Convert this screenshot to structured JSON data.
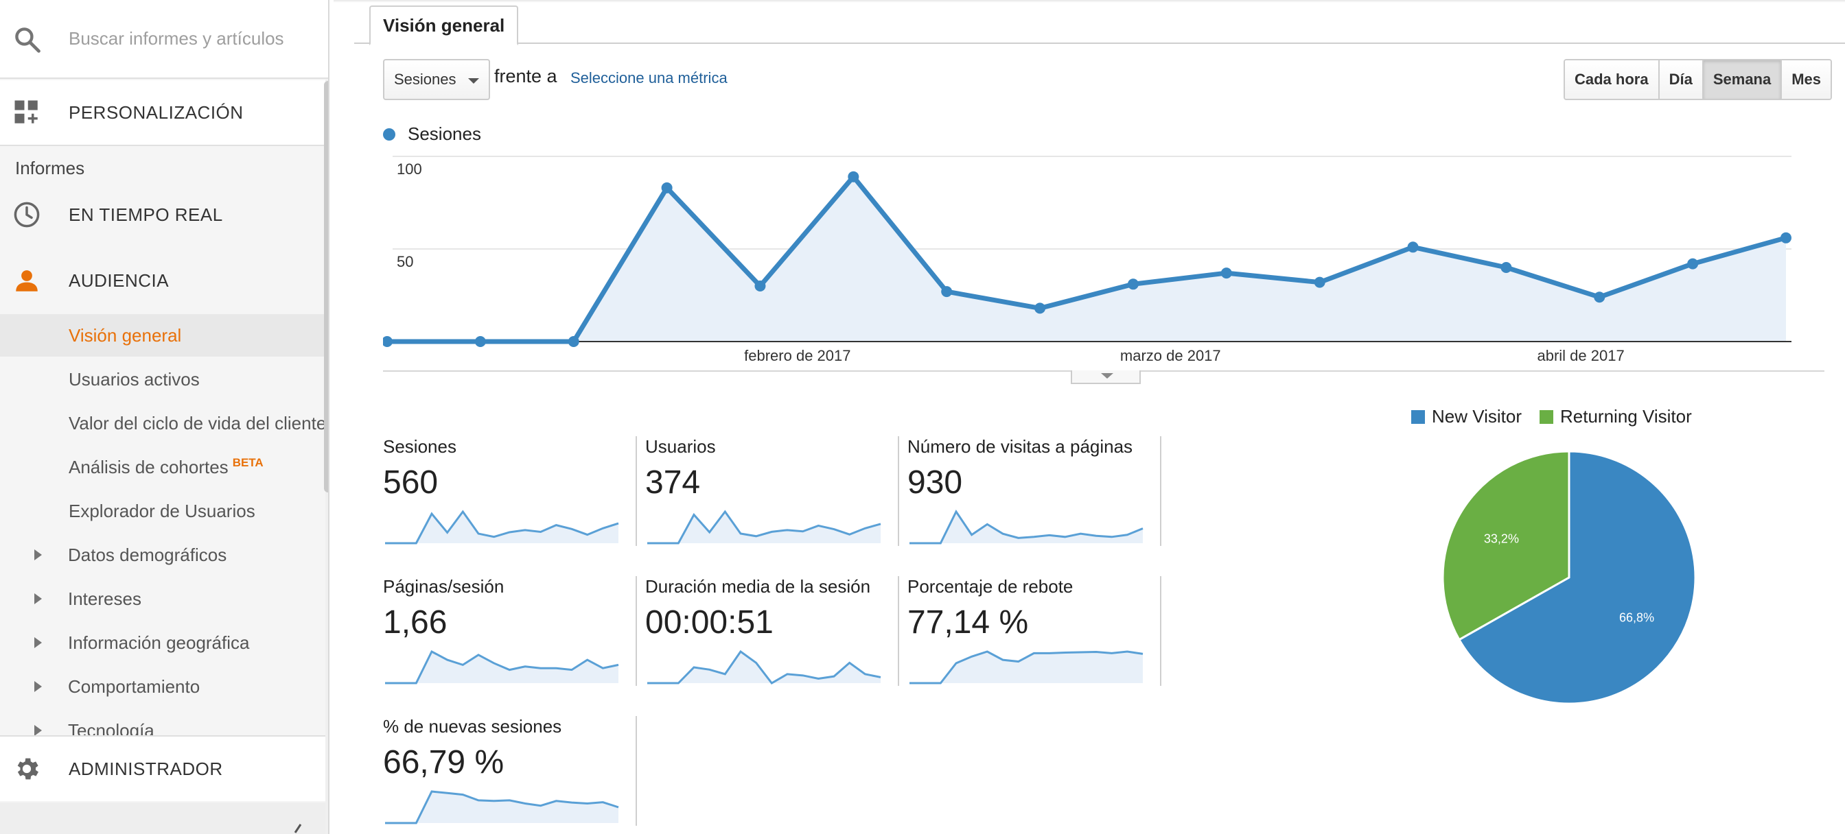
{
  "search": {
    "placeholder": "Buscar informes y artículos"
  },
  "sidebar": {
    "personalizacion": "PERSONALIZACIÓN",
    "informes_label": "Informes",
    "tiempo_real": "EN TIEMPO REAL",
    "audiencia": "AUDIENCIA",
    "audiencia_items": [
      {
        "label": "Visión general",
        "active": true
      },
      {
        "label": "Usuarios activos"
      },
      {
        "label": "Valor del ciclo de vida del cliente"
      },
      {
        "label": "Análisis de cohortes",
        "badge": "BETA"
      },
      {
        "label": "Explorador de Usuarios"
      }
    ],
    "tree_items": [
      "Datos demográficos",
      "Intereses",
      "Información geográfica",
      "Comportamiento",
      "Tecnología"
    ],
    "administrador": "ADMINISTRADOR",
    "icons": [
      "search-icon",
      "dashboard-add-icon",
      "clock-icon",
      "person-icon",
      "gear-icon",
      "chevron-left-icon"
    ]
  },
  "tabs": {
    "overview": "Visión general"
  },
  "controls": {
    "metric_select": "Sesiones",
    "versus": "frente a",
    "select_metric_link": "Seleccione una métrica",
    "granularity": [
      {
        "label": "Cada hora"
      },
      {
        "label": "Día"
      },
      {
        "label": "Semana",
        "active": true
      },
      {
        "label": "Mes"
      }
    ]
  },
  "colors": {
    "accent": "#3a87c2",
    "area_fill": "#e8f0f9",
    "active_nav": "#e8710a",
    "new_visitor": "#3a87c2",
    "returning_visitor": "#6aaf44"
  },
  "chart_data": [
    {
      "type": "line",
      "series": [
        {
          "name": "Sesiones",
          "values": [
            0,
            0,
            0,
            83,
            30,
            89,
            27,
            18,
            31,
            37,
            32,
            51,
            40,
            24,
            42,
            56
          ]
        }
      ],
      "x_tick_labels": [
        "febrero de 2017",
        "marzo de 2017",
        "abril de 2017"
      ],
      "x_tick_positions": [
        4.4,
        8.4,
        12.8
      ],
      "y_tick_labels": [
        "100",
        "50"
      ],
      "ylim": [
        0,
        100
      ],
      "grid": true,
      "area_fill": true
    },
    {
      "type": "pie",
      "labels": [
        "New Visitor",
        "Returning Visitor"
      ],
      "values": [
        66.8,
        33.2
      ],
      "value_labels": [
        "66,8%",
        "33,2%"
      ],
      "legend": "top"
    }
  ],
  "metrics": [
    {
      "label": "Sesiones",
      "value": "560",
      "spark": [
        0,
        0,
        0,
        83,
        30,
        89,
        27,
        18,
        31,
        37,
        32,
        51,
        40,
        24,
        42,
        56
      ]
    },
    {
      "label": "Usuarios",
      "value": "374",
      "spark": [
        0,
        0,
        0,
        65,
        25,
        72,
        22,
        16,
        26,
        30,
        27,
        40,
        32,
        20,
        34,
        44
      ]
    },
    {
      "label": "Número de visitas a páginas",
      "value": "930",
      "spark": [
        0,
        0,
        0,
        150,
        40,
        90,
        45,
        25,
        30,
        38,
        30,
        45,
        35,
        30,
        40,
        70
      ]
    },
    {
      "label": "Páginas/sesión",
      "value": "1,66",
      "spark": [
        0.4,
        0.4,
        0.4,
        2.3,
        1.8,
        1.5,
        2.1,
        1.6,
        1.2,
        1.4,
        1.3,
        1.3,
        1.2,
        1.8,
        1.3,
        1.5
      ]
    },
    {
      "label": "Duración media de la sesión",
      "value": "00:00:51",
      "spark": [
        5,
        5,
        5,
        40,
        35,
        25,
        75,
        50,
        5,
        25,
        22,
        15,
        20,
        50,
        25,
        18
      ]
    },
    {
      "label": "Porcentaje de rebote",
      "value": "77,14 %",
      "spark": [
        0,
        0,
        0,
        60,
        80,
        95,
        70,
        65,
        90,
        90,
        92,
        93,
        94,
        90,
        95,
        88
      ]
    },
    {
      "label": "% de nuevas sesiones",
      "value": "66,79 %",
      "spark": [
        0,
        0,
        0,
        100,
        95,
        90,
        72,
        70,
        72,
        62,
        55,
        70,
        65,
        62,
        66,
        50
      ]
    }
  ]
}
